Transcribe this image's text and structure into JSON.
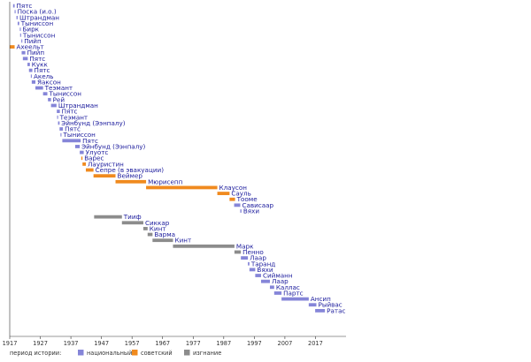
{
  "chart_data": {
    "type": "timeline",
    "x_axis": {
      "min": 1917,
      "max": 2027,
      "ticks": [
        1917,
        1927,
        1937,
        1947,
        1957,
        1967,
        1977,
        1987,
        1997,
        2007,
        2017
      ]
    },
    "colors": {
      "national": "#8585d8",
      "soviet": "#f08a1e",
      "exile": "#8c8c8c"
    },
    "legend": {
      "title": "период истории:",
      "items": [
        {
          "key": "national",
          "label": "национальный"
        },
        {
          "key": "soviet",
          "label": "советский"
        },
        {
          "key": "exile",
          "label": "изгнание"
        }
      ]
    },
    "rows": [
      {
        "label": "Пятс",
        "start": 1918.1,
        "end": 1918.6,
        "era": "national"
      },
      {
        "label": "Поска (и.о.)",
        "start": 1918.6,
        "end": 1918.8,
        "era": "national"
      },
      {
        "label": "Штрандман",
        "start": 1919.2,
        "end": 1919.6,
        "era": "national"
      },
      {
        "label": "Тыниссон",
        "start": 1919.6,
        "end": 1920.1,
        "era": "national"
      },
      {
        "label": "Бирк",
        "start": 1920.3,
        "end": 1920.4,
        "era": "national"
      },
      {
        "label": "Тыниссон",
        "start": 1920.4,
        "end": 1920.6,
        "era": "national"
      },
      {
        "label": "Пийп",
        "start": 1920.8,
        "end": 1921.1,
        "era": "national"
      },
      {
        "label": "Ахеельт",
        "start": 1917.0,
        "end": 1918.6,
        "era": "soviet"
      },
      {
        "label": "Пийп",
        "start": 1920.9,
        "end": 1922.1,
        "era": "national"
      },
      {
        "label": "Пятс",
        "start": 1921.3,
        "end": 1922.9,
        "era": "national"
      },
      {
        "label": "Кукк",
        "start": 1922.8,
        "end": 1923.6,
        "era": "national"
      },
      {
        "label": "Пятс",
        "start": 1923.3,
        "end": 1924.4,
        "era": "national"
      },
      {
        "label": "Акель",
        "start": 1923.9,
        "end": 1924.2,
        "era": "national"
      },
      {
        "label": "Яаксон",
        "start": 1924.2,
        "end": 1925.4,
        "era": "national"
      },
      {
        "label": "Теэмант",
        "start": 1925.4,
        "end": 1927.9,
        "era": "national"
      },
      {
        "label": "Тыниссон",
        "start": 1927.9,
        "end": 1929.3,
        "era": "national"
      },
      {
        "label": "Рей",
        "start": 1929.5,
        "end": 1930.5,
        "era": "national"
      },
      {
        "label": "Штрандман",
        "start": 1930.5,
        "end": 1932.3,
        "era": "national"
      },
      {
        "label": "Пятс",
        "start": 1932.4,
        "end": 1933.4,
        "era": "national"
      },
      {
        "label": "Теэмант",
        "start": 1932.5,
        "end": 1932.8,
        "era": "national"
      },
      {
        "label": "Эйнбунд (Ээнпалу)",
        "start": 1932.8,
        "end": 1933.3,
        "era": "national"
      },
      {
        "label": "Пятс",
        "start": 1933.3,
        "end": 1934.4,
        "era": "national"
      },
      {
        "label": "Тыниссон",
        "start": 1933.6,
        "end": 1933.8,
        "era": "national"
      },
      {
        "label": "Пятс",
        "start": 1934.2,
        "end": 1940.2,
        "era": "national"
      },
      {
        "label": "Эйнбунд (Ээнпалу)",
        "start": 1938.4,
        "end": 1939.9,
        "era": "national"
      },
      {
        "label": "Улуотс",
        "start": 1939.9,
        "end": 1941.2,
        "era": "national"
      },
      {
        "label": "Варес",
        "start": 1940.4,
        "end": 1940.8,
        "era": "soviet"
      },
      {
        "label": "Лауристин",
        "start": 1940.8,
        "end": 1941.9,
        "era": "soviet"
      },
      {
        "label": "Сепре (в эвакуации)",
        "start": 1941.9,
        "end": 1944.4,
        "era": "soviet"
      },
      {
        "label": "Веймер",
        "start": 1944.4,
        "end": 1951.6,
        "era": "soviet"
      },
      {
        "label": "Мюрисепп",
        "start": 1951.6,
        "end": 1961.6,
        "era": "soviet"
      },
      {
        "label": "Клаусон",
        "start": 1961.6,
        "end": 1984.9,
        "era": "soviet"
      },
      {
        "label": "Сауль",
        "start": 1984.9,
        "end": 1988.9,
        "era": "soviet"
      },
      {
        "label": "Тооме",
        "start": 1988.9,
        "end": 1990.7,
        "era": "soviet"
      },
      {
        "label": "Сависаар",
        "start": 1990.4,
        "end": 1992.4,
        "era": "national"
      },
      {
        "label": "Вяхи",
        "start": 1992.4,
        "end": 1992.8,
        "era": "national"
      },
      {
        "label": "Тииф",
        "start": 1944.6,
        "end": 1953.7,
        "era": "exile"
      },
      {
        "label": "Сиккар",
        "start": 1953.7,
        "end": 1960.7,
        "era": "exile"
      },
      {
        "label": "Кинт",
        "start": 1960.7,
        "end": 1962.1,
        "era": "exile"
      },
      {
        "label": "Варма",
        "start": 1962.1,
        "end": 1963.7,
        "era": "exile"
      },
      {
        "label": "Кинт",
        "start": 1963.7,
        "end": 1970.4,
        "era": "exile"
      },
      {
        "label": "Марк",
        "start": 1970.4,
        "end": 1990.5,
        "era": "exile"
      },
      {
        "label": "Пенно",
        "start": 1990.5,
        "end": 1992.6,
        "era": "exile"
      },
      {
        "label": "Лаар",
        "start": 1992.6,
        "end": 1994.9,
        "era": "national"
      },
      {
        "label": "Таранд",
        "start": 1994.9,
        "end": 1995.4,
        "era": "national"
      },
      {
        "label": "Вяхи",
        "start": 1995.4,
        "end": 1997.3,
        "era": "national"
      },
      {
        "label": "Сийманн",
        "start": 1997.3,
        "end": 1999.2,
        "era": "national"
      },
      {
        "label": "Лаар",
        "start": 1999.2,
        "end": 2002.1,
        "era": "national"
      },
      {
        "label": "Каллас",
        "start": 2002.1,
        "end": 2003.5,
        "era": "national"
      },
      {
        "label": "Партс",
        "start": 2003.5,
        "end": 2005.9,
        "era": "national"
      },
      {
        "label": "Ансип",
        "start": 2005.9,
        "end": 2014.8,
        "era": "national"
      },
      {
        "label": "Рыйвас",
        "start": 2014.8,
        "end": 2017.3,
        "era": "national"
      },
      {
        "label": "Ратас",
        "start": 2016.9,
        "end": 2020.1,
        "era": "national"
      }
    ]
  }
}
